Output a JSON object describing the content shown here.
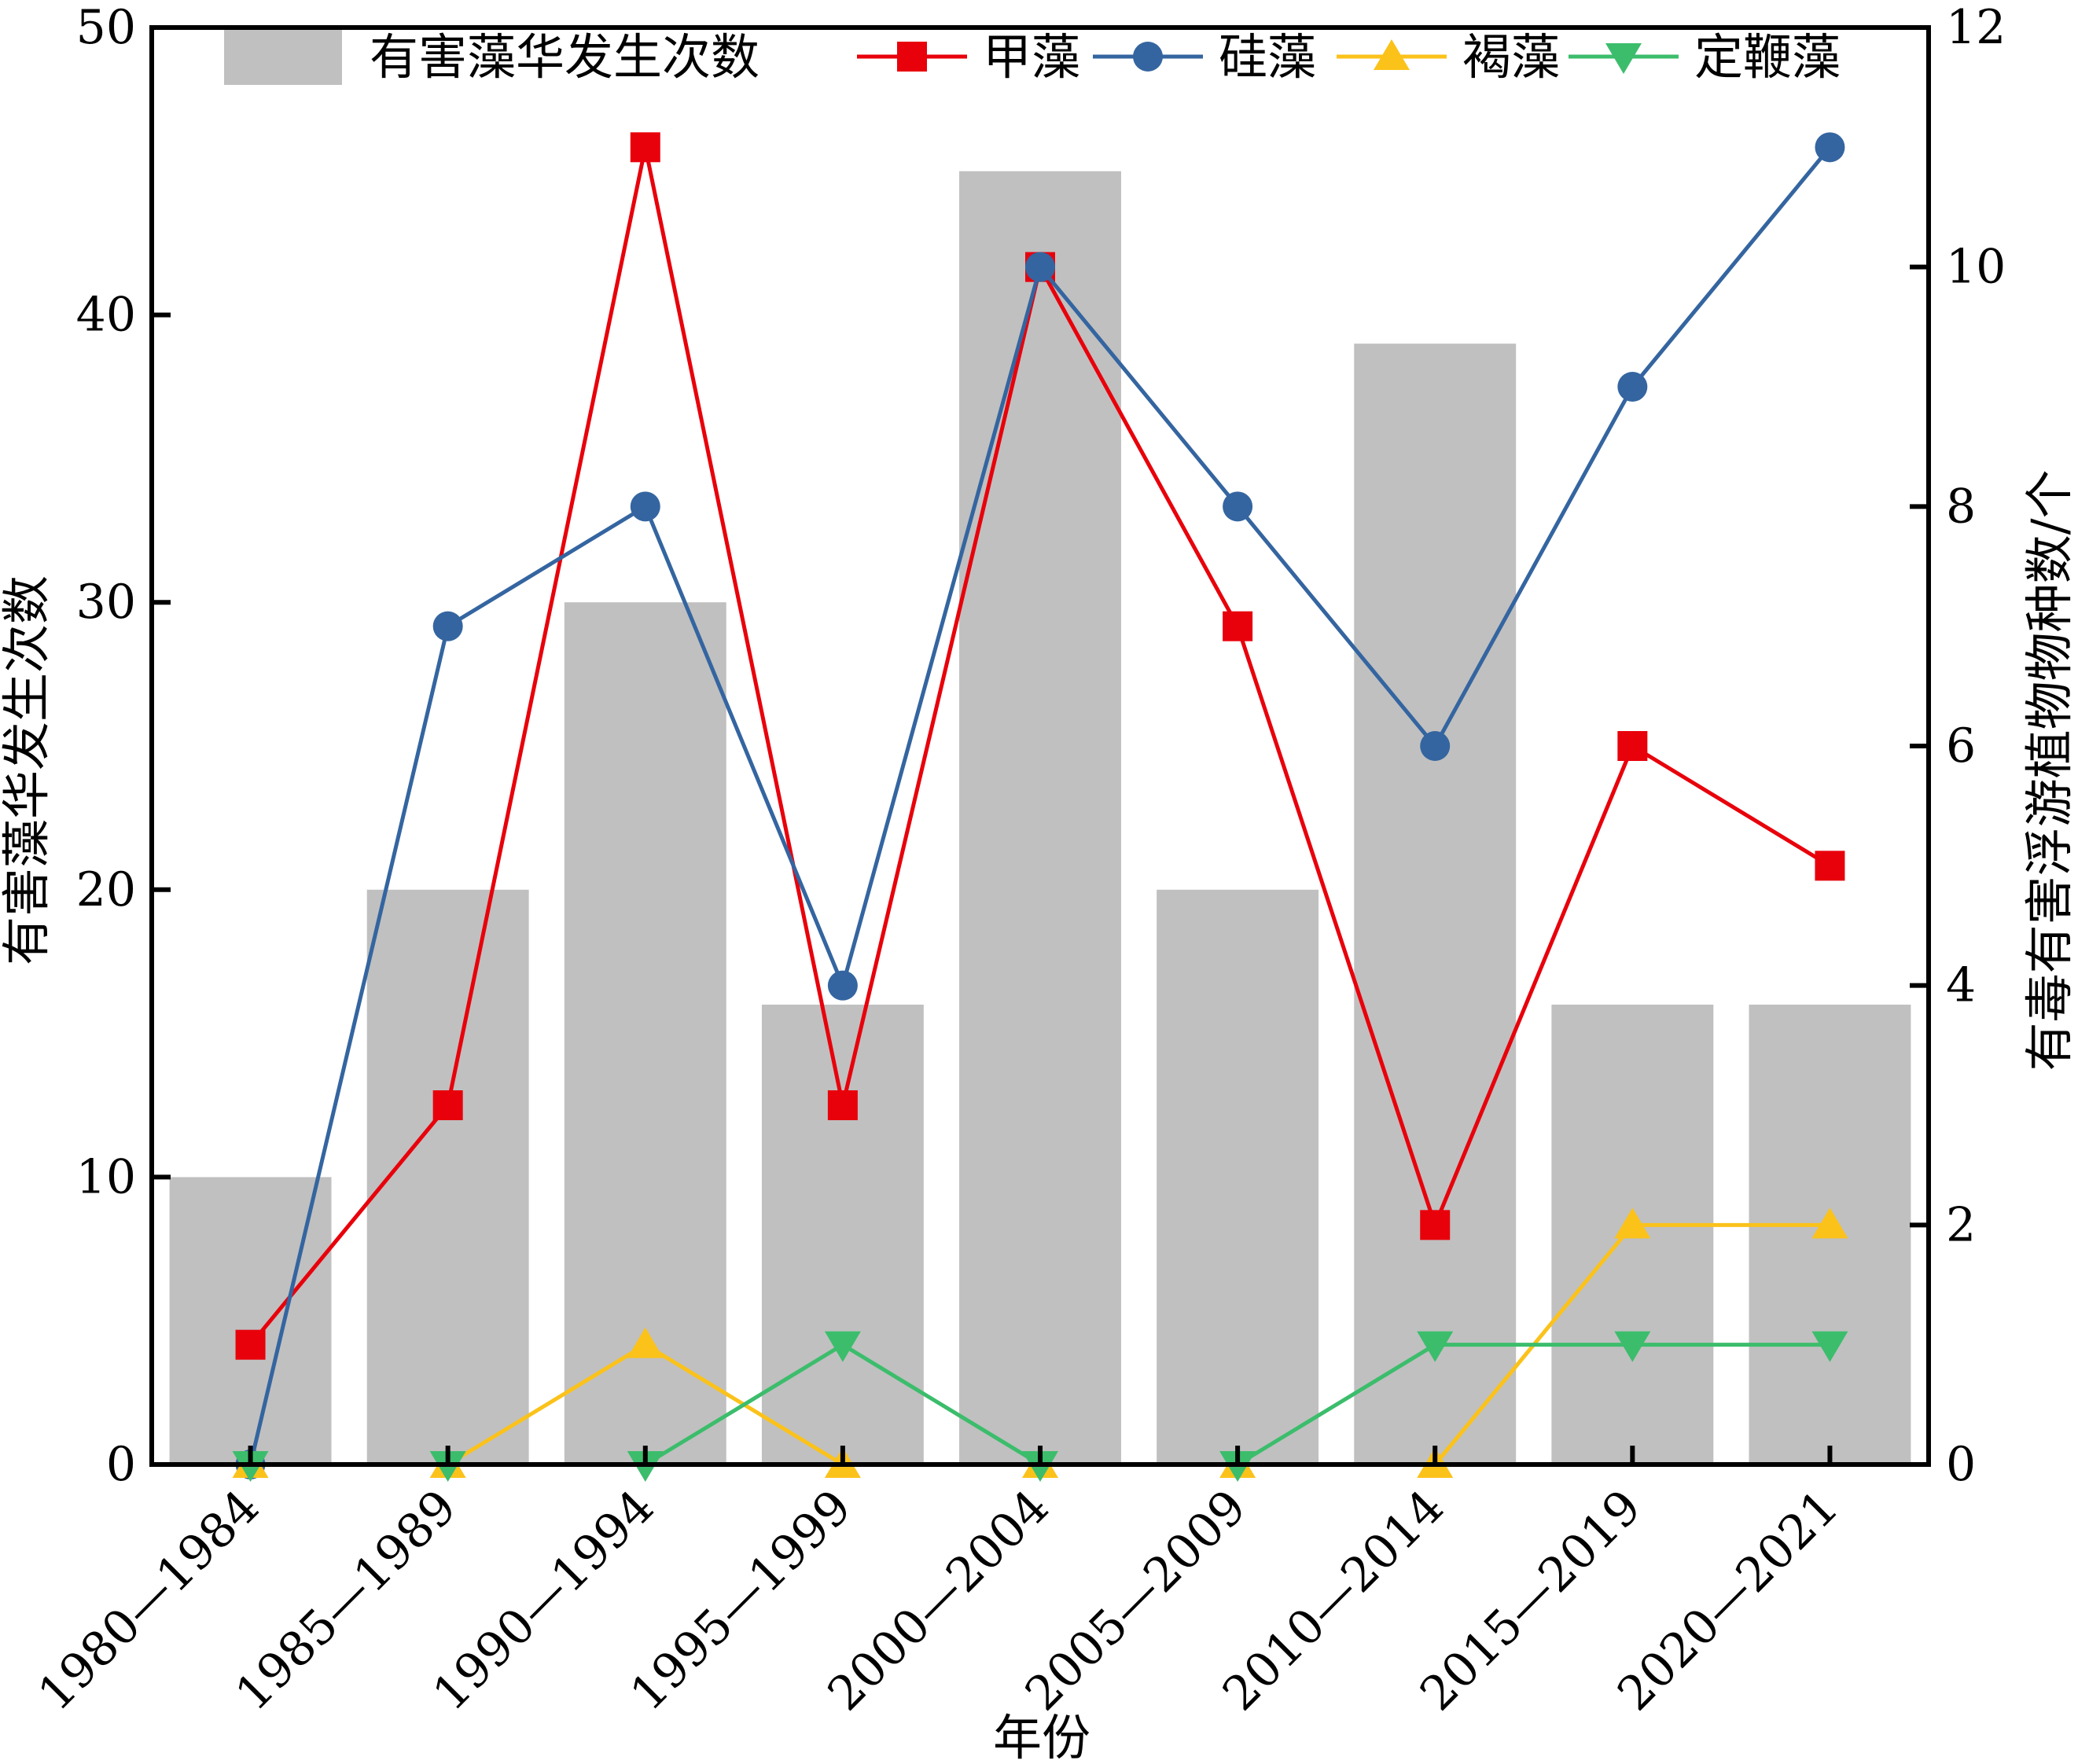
{
  "chart_data": {
    "type": "bar",
    "categories": [
      "1980—1984",
      "1985—1989",
      "1990—1994",
      "1995—1999",
      "2000—2004",
      "2005—2009",
      "2010—2014",
      "2015—2019",
      "2020—2021"
    ],
    "xlabel": "年份",
    "ylabel_left": "有害藻华发生次数",
    "ylabel_right": "有毒有害浮游植物物种数/个",
    "ylim_left": [
      0,
      50
    ],
    "ylim_right": [
      0,
      12
    ],
    "yticks_left": [
      0,
      10,
      20,
      30,
      40,
      50
    ],
    "yticks_right": [
      0,
      2,
      4,
      6,
      8,
      10,
      12
    ],
    "grid": false,
    "legend_position": "top",
    "bar_series": {
      "name": "有害藻华发生次数",
      "axis": "left",
      "color": "#c0c0c0",
      "values": [
        10,
        20,
        30,
        16,
        45,
        20,
        39,
        16,
        16
      ]
    },
    "line_series": [
      {
        "name": "甲藻",
        "axis": "right",
        "color": "#e8000b",
        "marker": "square",
        "values": [
          1,
          3,
          11,
          3,
          10,
          7,
          2,
          6,
          5
        ]
      },
      {
        "name": "硅藻",
        "axis": "right",
        "color": "#3465a0",
        "marker": "circle",
        "values": [
          0,
          7,
          8,
          4,
          10,
          8,
          6,
          9,
          11
        ]
      },
      {
        "name": "褐藻",
        "axis": "right",
        "color": "#fbc21a",
        "marker": "triangle-up",
        "values": [
          0,
          0,
          1,
          0,
          0,
          0,
          0,
          2,
          2
        ]
      },
      {
        "name": "定鞭藻",
        "axis": "right",
        "color": "#3cbd6c",
        "marker": "triangle-down",
        "values": [
          0,
          0,
          0,
          1,
          0,
          0,
          1,
          1,
          1
        ]
      }
    ]
  }
}
